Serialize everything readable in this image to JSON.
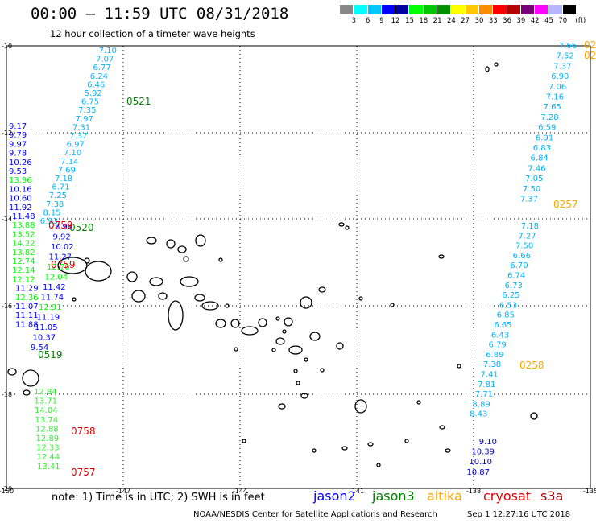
{
  "header": {
    "title": "00:00 – 11:59 UTC 08/31/2018",
    "subtitle": "12 hour collection of altimeter wave heights"
  },
  "colorbar": {
    "colors": [
      "#888888",
      "#00ffff",
      "#00c8ff",
      "#0000ff",
      "#0000a0",
      "#00ff00",
      "#00c800",
      "#009000",
      "#ffff00",
      "#ffc800",
      "#ff8c00",
      "#ff0000",
      "#b40000",
      "#780078",
      "#ff00ff",
      "#b4b4ff",
      "#000000"
    ],
    "labels": [
      "3",
      "6",
      "9",
      "12",
      "15",
      "18",
      "21",
      "24",
      "27",
      "30",
      "33",
      "36",
      "39",
      "42",
      "45",
      "70",
      "(ft)"
    ]
  },
  "axes": {
    "lat_labels": [
      "-10",
      "-12",
      "-14",
      "-16",
      "-18",
      "-20"
    ],
    "lon_labels": [
      "-150",
      "-147",
      "-144",
      "-141",
      "-138",
      "-135"
    ]
  },
  "tracks": {
    "left_cyan": [
      "7.10",
      "7.07",
      "6.77",
      "6.24",
      "6.46",
      "5.92",
      "6.75",
      "7.35",
      "7.97",
      "7.31",
      "7.37",
      "6.97",
      "7.10",
      "7.14",
      "7.69",
      "7.18",
      "6.71",
      "7.25",
      "7.38",
      "8.15",
      "6.93"
    ],
    "left_mixed": [
      {
        "v": "9.17",
        "c": "#0000ff"
      },
      {
        "v": "9.79",
        "c": "#0000ff"
      },
      {
        "v": "9.97",
        "c": "#0000ff"
      },
      {
        "v": "9.78",
        "c": "#0000ff"
      },
      {
        "v": "10.26",
        "c": "#0000ff"
      },
      {
        "v": "9.53",
        "c": "#0000ff"
      },
      {
        "v": "13.96",
        "c": "#00ff00"
      },
      {
        "v": "10.16",
        "c": "#0000ff"
      },
      {
        "v": "10.60",
        "c": "#0000ff"
      },
      {
        "v": "11.92",
        "c": "#0000ff"
      },
      {
        "v": "11.48",
        "c": "#0000ff"
      },
      {
        "v": "13.88",
        "c": "#00ff00"
      },
      {
        "v": "13.52",
        "c": "#00ff00"
      },
      {
        "v": "14.22",
        "c": "#00ff00"
      },
      {
        "v": "13.82",
        "c": "#00ff00"
      },
      {
        "v": "12.74",
        "c": "#00ff00"
      },
      {
        "v": "12.14",
        "c": "#00ff00"
      },
      {
        "v": "12.12",
        "c": "#00ff00"
      },
      {
        "v": "11.29",
        "c": "#0000ff"
      },
      {
        "v": "12.36",
        "c": "#00ff00"
      },
      {
        "v": "11.07",
        "c": "#0000ff"
      },
      {
        "v": "11.11",
        "c": "#0000ff"
      },
      {
        "v": "11.88",
        "c": "#0000ff"
      }
    ],
    "left_inner": [
      {
        "v": "8.98",
        "c": "#0000ff"
      },
      {
        "v": "9.92",
        "c": "#0000ff"
      },
      {
        "v": "10.02",
        "c": "#0000ff"
      },
      {
        "v": "11.27",
        "c": "#0000ff"
      },
      {
        "v": "12.70",
        "c": "#00ff00"
      },
      {
        "v": "12.04",
        "c": "#00ff00"
      },
      {
        "v": "11.42",
        "c": "#0000ff"
      },
      {
        "v": "11.74",
        "c": "#0000ff"
      },
      {
        "v": "12.91",
        "c": "#00ff00"
      },
      {
        "v": "11.19",
        "c": "#0000ff"
      },
      {
        "v": "11.05",
        "c": "#0000ff"
      },
      {
        "v": "10.37",
        "c": "#0000ff"
      },
      {
        "v": "9.54",
        "c": "#0000ff"
      }
    ],
    "left_bottom": [
      "12.84",
      "13.71",
      "14.04",
      "13.74",
      "12.88",
      "12.89",
      "12.33",
      "12.44",
      "13.41"
    ],
    "right_top": [
      "7.66",
      "7.52",
      "7.37",
      "6.90",
      "7.06",
      "7.16",
      "7.65",
      "7.28",
      "6.59",
      "6.91",
      "6.83",
      "6.84",
      "7.46",
      "7.05",
      "7.50",
      "7.37"
    ],
    "right_mid": [
      "7.18",
      "7.27",
      "7.50",
      "6.66",
      "6.70",
      "6.74",
      "6.73",
      "6.25",
      "6.53",
      "6.85",
      "6.65",
      "6.43",
      "6.79",
      "6.89",
      "7.38",
      "7.41",
      "7.81",
      "7.71",
      "8.89",
      "8.43"
    ],
    "right_bottom": [
      "9.10",
      "10.39",
      "10.10",
      "10.87"
    ]
  },
  "time_labels": [
    {
      "t": "0521",
      "c": "#008000"
    },
    {
      "t": "0520",
      "c": "#008000"
    },
    {
      "t": "0759",
      "c": "#e00000"
    },
    {
      "t": "0759",
      "c": "#e00000"
    },
    {
      "t": "0519",
      "c": "#008000"
    },
    {
      "t": "0758",
      "c": "#e00000"
    },
    {
      "t": "0757",
      "c": "#e00000"
    },
    {
      "t": "0257",
      "c": "#ffa500"
    },
    {
      "t": "0258",
      "c": "#ffa500"
    },
    {
      "t": "02",
      "c": "#ffa500"
    },
    {
      "t": "02",
      "c": "#ffa500"
    }
  ],
  "footer": {
    "note": "note:  1) Time is in UTC; 2) SWH is in feet",
    "legend": [
      {
        "name": "jason2",
        "color": "#0000ff"
      },
      {
        "name": "jason3",
        "color": "#008000"
      },
      {
        "name": "altika",
        "color": "#ffa500"
      },
      {
        "name": "cryosat",
        "color": "#e00000"
      },
      {
        "name": "s3a",
        "color": "#b00000"
      }
    ],
    "credit": "NOAA/NESDIS Center for Satellite Applications and Research",
    "timestamp": "Sep  1 12:27:16 UTC 2018"
  }
}
